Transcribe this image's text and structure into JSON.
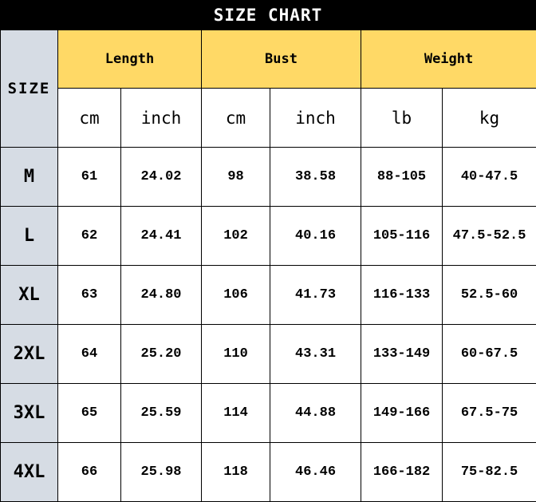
{
  "title": "SIZE CHART",
  "colors": {
    "title_bg": "#000000",
    "header_bg": "#ffd966",
    "size_col_bg": "#d6dce4"
  },
  "header": {
    "size": "SIZE",
    "groups": [
      "Length",
      "Bust",
      "Weight"
    ],
    "units": [
      "cm",
      "inch",
      "cm",
      "inch",
      "lb",
      "kg"
    ]
  },
  "rows": [
    {
      "size": "M",
      "values": [
        "61",
        "24.02",
        "98",
        "38.58",
        "88-105",
        "40-47.5"
      ]
    },
    {
      "size": "L",
      "values": [
        "62",
        "24.41",
        "102",
        "40.16",
        "105-116",
        "47.5-52.5"
      ]
    },
    {
      "size": "XL",
      "values": [
        "63",
        "24.80",
        "106",
        "41.73",
        "116-133",
        "52.5-60"
      ]
    },
    {
      "size": "2XL",
      "values": [
        "64",
        "25.20",
        "110",
        "43.31",
        "133-149",
        "60-67.5"
      ]
    },
    {
      "size": "3XL",
      "values": [
        "65",
        "25.59",
        "114",
        "44.88",
        "149-166",
        "67.5-75"
      ]
    },
    {
      "size": "4XL",
      "values": [
        "66",
        "25.98",
        "118",
        "46.46",
        "166-182",
        "75-82.5"
      ]
    }
  ]
}
